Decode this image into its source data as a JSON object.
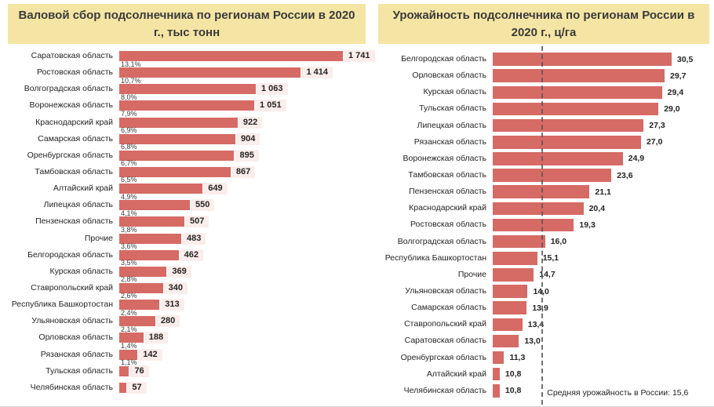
{
  "colors": {
    "bar": "#D66A64",
    "title_bg": "#F5E5A4",
    "value_chip_bg": "#FBEDEB",
    "text": "#252423",
    "avg_line": "#595959"
  },
  "chart_data": [
    {
      "type": "bar",
      "orientation": "horizontal",
      "title": "Валовой сбор подсолнечника по регионам России в 2020 г., тыс тонн",
      "categories": [
        "Саратовская область",
        "Ростовская область",
        "Волгоградская область",
        "Воронежская область",
        "Краснодарский край",
        "Самарская область",
        "Оренбургская область",
        "Тамбовская область",
        "Алтайский край",
        "Липецкая область",
        "Пензенская область",
        "Прочие",
        "Белгородская область",
        "Курская область",
        "Ставропольский край",
        "Республика Башкортостан",
        "Ульяновская область",
        "Орловская область",
        "Рязанская область",
        "Тульская область",
        "Челябинская область"
      ],
      "values": [
        1741,
        1414,
        1063,
        1051,
        922,
        904,
        895,
        867,
        649,
        550,
        507,
        483,
        462,
        369,
        340,
        313,
        280,
        188,
        142,
        76,
        57
      ],
      "value_labels": [
        "1 741",
        "1 414",
        "1 063",
        "1 051",
        "922",
        "904",
        "895",
        "867",
        "649",
        "550",
        "507",
        "483",
        "462",
        "369",
        "340",
        "313",
        "280",
        "188",
        "142",
        "76",
        "57"
      ],
      "share_labels": [
        "13,1%",
        "10,7%",
        "8,0%",
        "7,9%",
        "6,9%",
        "6,8%",
        "6,7%",
        "6,5%",
        "4,9%",
        "4,1%",
        "3,8%",
        "3,6%",
        "3,5%",
        "2,8%",
        "2,6%",
        "2,4%",
        "2,1%",
        "1,4%",
        "1,1%",
        "",
        ""
      ],
      "xlim": [
        0,
        1900
      ],
      "grid": false,
      "legend": false
    },
    {
      "type": "bar",
      "orientation": "horizontal",
      "title": "Урожайность подсолнечника по регионам России в 2020 г., ц/га",
      "categories": [
        "Белгородская область",
        "Орловская область",
        "Курская область",
        "Тульская область",
        "Липецкая область",
        "Рязанская область",
        "Воронежская область",
        "Тамбовская область",
        "Пензенская область",
        "Краснодарский край",
        "Ростовская область",
        "Волгоградская область",
        "Республика Башкортостан",
        "Прочие",
        "Ульяновская область",
        "Самарская область",
        "Ставропольский край",
        "Саратовская область",
        "Оренбургская область",
        "Алтайский край",
        "Челябинская область"
      ],
      "values": [
        30.5,
        29.7,
        29.4,
        29.0,
        27.3,
        27.0,
        24.9,
        23.6,
        21.1,
        20.4,
        19.3,
        16.0,
        15.1,
        14.7,
        14.0,
        13.9,
        13.4,
        13.0,
        11.3,
        10.8,
        10.8
      ],
      "value_labels": [
        "30,5",
        "29,7",
        "29,4",
        "29,0",
        "27,3",
        "27,0",
        "24,9",
        "23,6",
        "21,1",
        "20,4",
        "19,3",
        "16,0",
        "15,1",
        "14,7",
        "14,0",
        "13,9",
        "13,4",
        "13,0",
        "11,3",
        "10,8",
        "10,8"
      ],
      "xlim": [
        10,
        31.5
      ],
      "average_line": {
        "value": 15.6,
        "label": "Средняя урожайность в России: 15,6"
      },
      "grid": false,
      "legend": false
    }
  ]
}
